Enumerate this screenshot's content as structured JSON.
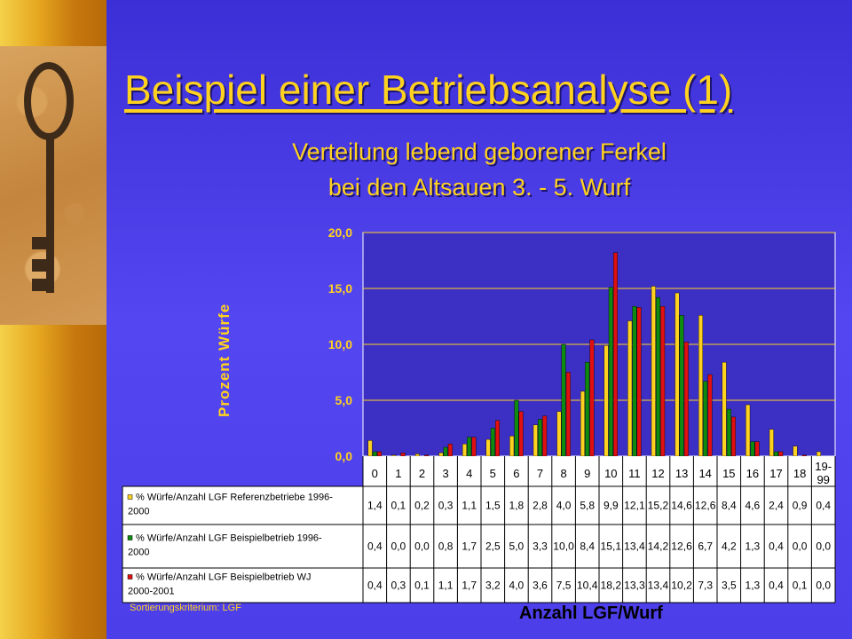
{
  "slide": {
    "title": "Beispiel einer Betriebsanalyse (1)",
    "subtitle_line1": "Verteilung lebend geborener Ferkel",
    "subtitle_line2": "bei den Altsauen 3. - 5. Wurf",
    "note": "Sortierungskriterium: LGF"
  },
  "chart_data": {
    "type": "bar",
    "title": "",
    "ylabel": "Prozent Würfe",
    "xlabel": "Anzahl LGF/Wurf",
    "ylim": [
      0,
      20
    ],
    "yticks": [
      "0,0",
      "5,0",
      "10,0",
      "15,0",
      "20,0"
    ],
    "grid": true,
    "legend": "table-below",
    "categories": [
      "0",
      "1",
      "2",
      "3",
      "4",
      "5",
      "6",
      "7",
      "8",
      "9",
      "10",
      "11",
      "12",
      "13",
      "14",
      "15",
      "16",
      "17",
      "18",
      "19-99"
    ],
    "series": [
      {
        "name_line1": "% Würfe/Anzahl LGF Referenzbetriebe 1996-",
        "name_line2": "2000",
        "color": "#ffd21f",
        "values": [
          1.4,
          0.1,
          0.2,
          0.3,
          1.1,
          1.5,
          1.8,
          2.8,
          4.0,
          5.8,
          9.9,
          12.1,
          15.2,
          14.6,
          12.6,
          8.4,
          4.6,
          2.4,
          0.9,
          0.4
        ],
        "labels": [
          "1,4",
          "0,1",
          "0,2",
          "0,3",
          "1,1",
          "1,5",
          "1,8",
          "2,8",
          "4,0",
          "5,8",
          "9,9",
          "12,1",
          "15,2",
          "14,6",
          "12,6",
          "8,4",
          "4,6",
          "2,4",
          "0,9",
          "0,4"
        ]
      },
      {
        "name_line1": "% Würfe/Anzahl LGF Beispielbetrieb 1996-",
        "name_line2": "2000",
        "color": "#0e8a0e",
        "values": [
          0.4,
          0.0,
          0.0,
          0.8,
          1.7,
          2.5,
          5.0,
          3.3,
          10.0,
          8.4,
          15.1,
          13.4,
          14.2,
          12.6,
          6.7,
          4.2,
          1.3,
          0.4,
          0.0,
          0.0
        ],
        "labels": [
          "0,4",
          "0,0",
          "0,0",
          "0,8",
          "1,7",
          "2,5",
          "5,0",
          "3,3",
          "10,0",
          "8,4",
          "15,1",
          "13,4",
          "14,2",
          "12,6",
          "6,7",
          "4,2",
          "1,3",
          "0,4",
          "0,0",
          "0,0"
        ]
      },
      {
        "name_line1": "% Würfe/Anzahl LGF Beispielbetrieb WJ",
        "name_line2": "2000-2001",
        "color": "#e01010",
        "values": [
          0.4,
          0.3,
          0.1,
          1.1,
          1.7,
          3.2,
          4.0,
          3.6,
          7.5,
          10.4,
          18.2,
          13.3,
          13.4,
          10.2,
          7.3,
          3.5,
          1.3,
          0.4,
          0.1,
          0.0
        ],
        "labels": [
          "0,4",
          "0,3",
          "0,1",
          "1,1",
          "1,7",
          "3,2",
          "4,0",
          "3,6",
          "7,5",
          "10,4",
          "18,2",
          "13,3",
          "13,4",
          "10,2",
          "7,3",
          "3,5",
          "1,3",
          "0,4",
          "0,1",
          "0,0"
        ]
      }
    ]
  }
}
